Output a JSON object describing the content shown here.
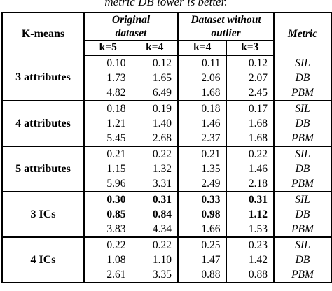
{
  "caption": "metric DB lower is better.",
  "headers": {
    "kmeans": "K-means",
    "original_line1": "Original",
    "original_line2": "dataset",
    "without_line1": "Dataset without",
    "without_line2": "outlier",
    "metric": "Metric",
    "k_values": [
      "k=5",
      "k=4",
      "k=4",
      "k=3"
    ]
  },
  "groups": [
    {
      "label": "3 attributes",
      "rows": [
        {
          "values": [
            "0.10",
            "0.12",
            "0.11",
            "0.12"
          ],
          "metric": "SIL",
          "bold": false
        },
        {
          "values": [
            "1.73",
            "1.65",
            "2.06",
            "2.07"
          ],
          "metric": "DB",
          "bold": false
        },
        {
          "values": [
            "4.82",
            "6.49",
            "1.68",
            "2.45"
          ],
          "metric": "PBM",
          "bold": false
        }
      ]
    },
    {
      "label": "4 attributes",
      "rows": [
        {
          "values": [
            "0.18",
            "0.19",
            "0.18",
            "0.17"
          ],
          "metric": "SIL",
          "bold": false
        },
        {
          "values": [
            "1.21",
            "1.40",
            "1.46",
            "1.68"
          ],
          "metric": "DB",
          "bold": false
        },
        {
          "values": [
            "5.45",
            "2.68",
            "2.37",
            "1.68"
          ],
          "metric": "PBM",
          "bold": false
        }
      ]
    },
    {
      "label": "5 attributes",
      "rows": [
        {
          "values": [
            "0.21",
            "0.22",
            "0.21",
            "0.22"
          ],
          "metric": "SIL",
          "bold": false
        },
        {
          "values": [
            "1.15",
            "1.32",
            "1.35",
            "1.46"
          ],
          "metric": "DB",
          "bold": false
        },
        {
          "values": [
            "5.96",
            "3.31",
            "2.49",
            "2.18"
          ],
          "metric": "PBM",
          "bold": false
        }
      ]
    },
    {
      "label": "3 ICs",
      "rows": [
        {
          "values": [
            "0.30",
            "0.31",
            "0.33",
            "0.31"
          ],
          "metric": "SIL",
          "bold": true
        },
        {
          "values": [
            "0.85",
            "0.84",
            "0.98",
            "1.12"
          ],
          "metric": "DB",
          "bold": true
        },
        {
          "values": [
            "3.83",
            "4.34",
            "1.66",
            "1.53"
          ],
          "metric": "PBM",
          "bold": false
        }
      ]
    },
    {
      "label": "4 ICs",
      "rows": [
        {
          "values": [
            "0.22",
            "0.22",
            "0.25",
            "0.23"
          ],
          "metric": "SIL",
          "bold": false
        },
        {
          "values": [
            "1.08",
            "1.10",
            "1.47",
            "1.42"
          ],
          "metric": "DB",
          "bold": false
        },
        {
          "values": [
            "2.61",
            "3.35",
            "0.88",
            "0.88"
          ],
          "metric": "PBM",
          "bold": false
        }
      ]
    }
  ]
}
